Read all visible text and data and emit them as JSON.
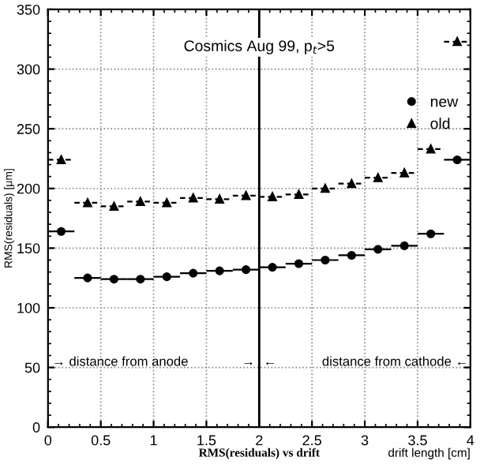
{
  "chart_data": {
    "type": "scatter",
    "title": "Cosmics Aug 99, p$_{t}$>5",
    "xlabel": "drift length [cm]",
    "ylabel": "RMS(residuals) [μm]",
    "annotations": [
      "→ distance from anode",
      "→",
      "←",
      "distance from cathode ←",
      "RMS(residuals) vs drift"
    ],
    "x": [
      0.125,
      0.375,
      0.625,
      0.875,
      1.125,
      1.375,
      1.625,
      1.875,
      2.125,
      2.375,
      2.625,
      2.875,
      3.125,
      3.375,
      3.625,
      3.875
    ],
    "series": [
      {
        "name": "new",
        "color": "#000000",
        "marker": "circle",
        "line_style": "solid",
        "values": [
          164,
          125,
          124,
          124,
          126,
          129,
          131,
          132,
          134,
          137,
          140,
          144,
          149,
          152,
          162,
          224
        ],
        "xerrors": [
          0.125,
          0.125,
          0.125,
          0.125,
          0.125,
          0.125,
          0.125,
          0.125,
          0.125,
          0.125,
          0.125,
          0.125,
          0.125,
          0.125,
          0.125,
          0.125
        ]
      },
      {
        "name": "old",
        "color": "#000000",
        "marker": "triangle",
        "line_style": "dashed",
        "values": [
          224,
          188,
          185,
          189,
          188,
          192,
          191,
          194,
          193,
          195,
          200,
          204,
          209,
          213,
          233,
          323
        ],
        "xerrors": [
          0.125,
          0.125,
          0.125,
          0.125,
          0.125,
          0.125,
          0.125,
          0.125,
          0.125,
          0.125,
          0.125,
          0.125,
          0.125,
          0.125,
          0.125,
          0.125
        ]
      }
    ],
    "xlim": [
      0,
      4
    ],
    "xticks": [
      0,
      0.5,
      1,
      1.5,
      2,
      2.5,
      3,
      3.5,
      4
    ],
    "ylim": [
      0,
      350
    ],
    "yticks": [
      0,
      50,
      100,
      150,
      200,
      250,
      300,
      350
    ],
    "ref_lines": [
      {
        "axis": "x",
        "value": 2,
        "color": "#000000",
        "line_style": "solid"
      }
    ],
    "grid": true,
    "legend": "right"
  }
}
